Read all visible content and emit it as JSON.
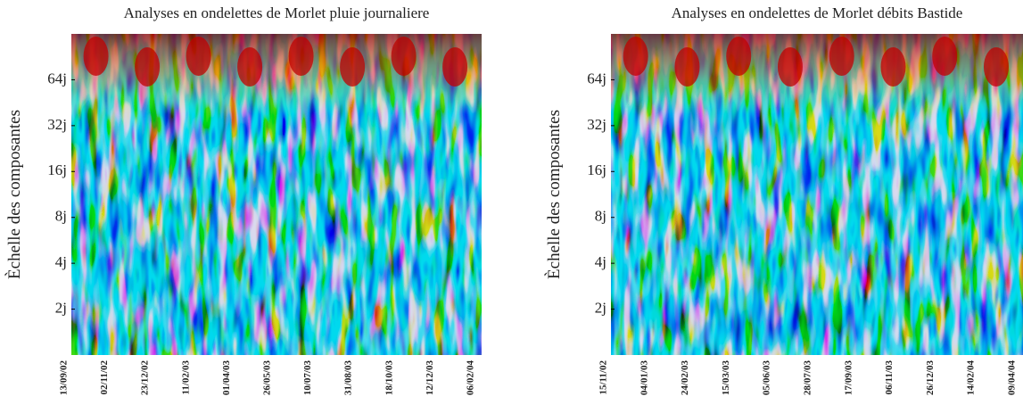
{
  "chart_data": [
    {
      "type": "heatmap",
      "title": "Analyses en ondelettes de Morlet pluie journaliere",
      "y_label": "Èchelle des composantes",
      "log_y": true,
      "ylim": [
        1,
        128
      ],
      "yticks": [
        {
          "value": 2,
          "label": "2j"
        },
        {
          "value": 4,
          "label": "4j"
        },
        {
          "value": 8,
          "label": "8j"
        },
        {
          "value": 16,
          "label": "16j"
        },
        {
          "value": 32,
          "label": "32j"
        },
        {
          "value": 64,
          "label": "64j"
        }
      ],
      "categories": [
        "13/09/02",
        "02/11/02",
        "23/12/02",
        "11/02/03",
        "01/04/03",
        "26/05/03",
        "10/07/03",
        "31/08/03",
        "18/10/03",
        "12/12/03",
        "06/02/04"
      ]
    },
    {
      "type": "heatmap",
      "title": "Analyses en ondelettes de Morlet débits Bastide",
      "y_label": "Èchelle des composantes",
      "log_y": true,
      "ylim": [
        1,
        128
      ],
      "yticks": [
        {
          "value": 2,
          "label": "2j"
        },
        {
          "value": 4,
          "label": "4j"
        },
        {
          "value": 8,
          "label": "8j"
        },
        {
          "value": 16,
          "label": "16j"
        },
        {
          "value": 32,
          "label": "32j"
        },
        {
          "value": 64,
          "label": "64j"
        }
      ],
      "categories": [
        "15/11/02",
        "04/01/03",
        "24/02/03",
        "15/03/03",
        "05/06/03",
        "28/07/03",
        "17/09/03",
        "06/11/03",
        "26/12/03",
        "14/02/04",
        "09/04/04"
      ]
    }
  ]
}
